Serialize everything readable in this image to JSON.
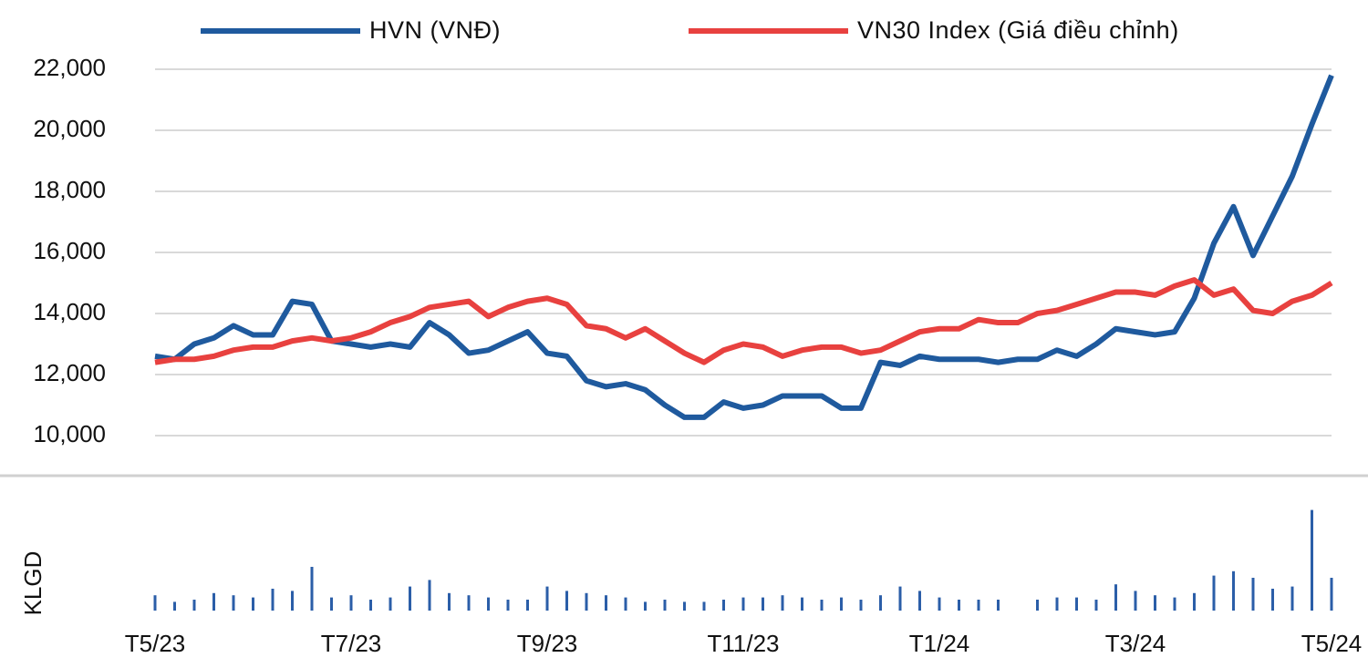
{
  "chart_data": [
    {
      "type": "line",
      "categories": [
        "T5/23",
        null,
        null,
        null,
        null,
        null,
        null,
        null,
        null,
        null,
        "T7/23",
        null,
        null,
        null,
        null,
        null,
        null,
        null,
        null,
        null,
        "T9/23",
        null,
        null,
        null,
        null,
        null,
        null,
        null,
        null,
        null,
        "T11/23",
        null,
        null,
        null,
        null,
        null,
        null,
        null,
        null,
        null,
        "T1/24",
        null,
        null,
        null,
        null,
        null,
        null,
        null,
        null,
        null,
        "T3/24",
        null,
        null,
        null,
        null,
        null,
        null,
        null,
        null,
        null,
        "T5/24"
      ],
      "series": [
        {
          "name": "HVN  (VNĐ)",
          "color": "#1f5a9e",
          "values": [
            12600,
            12500,
            13000,
            13200,
            13600,
            13300,
            13300,
            14400,
            14300,
            13100,
            13000,
            12900,
            13000,
            12900,
            13700,
            13300,
            12700,
            12800,
            13100,
            13400,
            12700,
            12600,
            11800,
            11600,
            11700,
            11500,
            11000,
            10600,
            10600,
            11100,
            10900,
            11000,
            11300,
            11300,
            11300,
            10900,
            10900,
            12400,
            12300,
            12600,
            12500,
            12500,
            12500,
            12400,
            12500,
            12500,
            12800,
            12600,
            13000,
            13500,
            13400,
            13300,
            13400,
            14500,
            16300,
            17500,
            15900,
            17200,
            18500,
            20200,
            21800
          ]
        },
        {
          "name": "VN30 Index (Giá điều chỉnh)",
          "color": "#e8413f",
          "values": [
            12400,
            12500,
            12500,
            12600,
            12800,
            12900,
            12900,
            13100,
            13200,
            13100,
            13200,
            13400,
            13700,
            13900,
            14200,
            14300,
            14400,
            13900,
            14200,
            14400,
            14500,
            14300,
            13600,
            13500,
            13200,
            13500,
            13100,
            12700,
            12400,
            12800,
            13000,
            12900,
            12600,
            12800,
            12900,
            12900,
            12700,
            12800,
            13100,
            13400,
            13500,
            13500,
            13800,
            13700,
            13700,
            14000,
            14100,
            14300,
            14500,
            14700,
            14700,
            14600,
            14900,
            15100,
            14600,
            14800,
            14100,
            14000,
            14400,
            14600,
            15000
          ]
        }
      ],
      "ylim": [
        10000,
        22000
      ],
      "yticks": [
        {
          "value": 10000,
          "label": "10,000"
        },
        {
          "value": 12000,
          "label": "12,000"
        },
        {
          "value": 14000,
          "label": "14,000"
        },
        {
          "value": 16000,
          "label": "16,000"
        },
        {
          "value": 18000,
          "label": "18,000"
        },
        {
          "value": 20000,
          "label": "20,000"
        },
        {
          "value": 22000,
          "label": "22,000"
        }
      ],
      "grid": true
    },
    {
      "type": "bar",
      "y_label": "KLGD",
      "color": "#2b5ea8",
      "ylim": [
        0,
        100
      ],
      "values": [
        14,
        8,
        10,
        16,
        14,
        12,
        20,
        18,
        40,
        12,
        14,
        10,
        12,
        22,
        28,
        16,
        14,
        12,
        10,
        10,
        22,
        18,
        16,
        14,
        12,
        8,
        10,
        8,
        8,
        10,
        12,
        12,
        14,
        12,
        10,
        12,
        10,
        14,
        22,
        18,
        12,
        10,
        10,
        10,
        null,
        10,
        12,
        12,
        10,
        24,
        18,
        14,
        12,
        16,
        32,
        36,
        30,
        20,
        22,
        92,
        30
      ]
    }
  ]
}
